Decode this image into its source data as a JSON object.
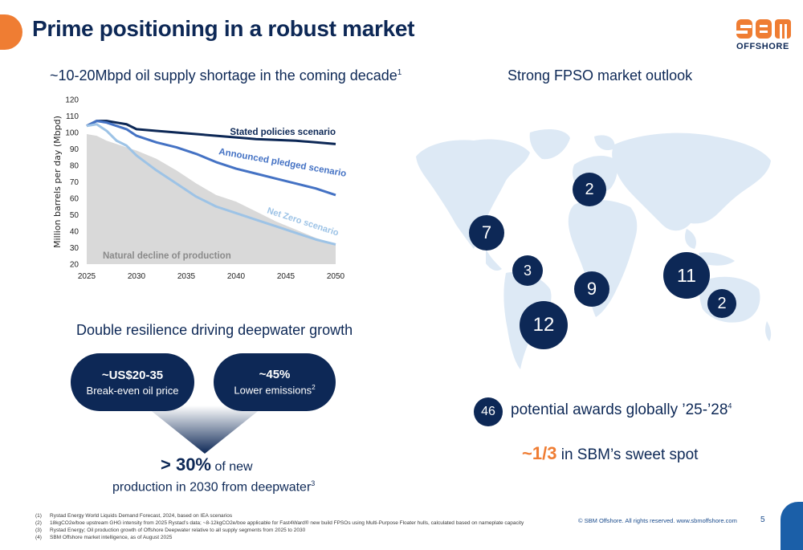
{
  "header": {
    "title": "Prime positioning in a robust market",
    "logo_text": "OFFSHORE"
  },
  "left": {
    "subtitle": "~10-20Mbpd oil supply shortage in the coming decade",
    "subtitle_sup": "1"
  },
  "chart_data": {
    "type": "area",
    "ylabel": "Million barrels per day (Mbpd)",
    "xlabel": "",
    "x": [
      2025,
      2026,
      2027,
      2028,
      2029,
      2030,
      2032,
      2034,
      2036,
      2038,
      2040,
      2042,
      2044,
      2046,
      2048,
      2050
    ],
    "xticks": [
      "2025",
      "2030",
      "2035",
      "2040",
      "2045",
      "2050"
    ],
    "yticks": [
      "20",
      "30",
      "40",
      "50",
      "60",
      "70",
      "80",
      "90",
      "100",
      "110",
      "120"
    ],
    "ylim": [
      20,
      120
    ],
    "xlim": [
      2025,
      2050
    ],
    "series": [
      {
        "name": "Stated policies scenario",
        "kind": "line",
        "color": "#0d2856",
        "values": [
          104,
          107,
          107,
          106,
          105,
          102,
          101,
          100,
          99,
          98,
          97,
          96,
          95.5,
          95,
          94,
          93
        ]
      },
      {
        "name": "Announced pledged scenario",
        "kind": "line",
        "color": "#4472c4",
        "values": [
          104,
          107,
          106,
          104,
          102,
          98,
          94,
          91,
          87,
          82,
          78,
          75,
          72,
          69,
          66,
          62
        ]
      },
      {
        "name": "Net Zero scenario",
        "kind": "line",
        "color": "#9dc3e6",
        "values": [
          104,
          105,
          101,
          95,
          92,
          86,
          77,
          69,
          61,
          55,
          51,
          47,
          43,
          39,
          35,
          32
        ]
      },
      {
        "name": "Natural decline of production",
        "kind": "area",
        "color": "#d9d9d9",
        "values": [
          99,
          98,
          95,
          93,
          91,
          89,
          84,
          77,
          69,
          62,
          58,
          52,
          46,
          41,
          36,
          32
        ]
      }
    ],
    "labels": {
      "stated": "Stated policies scenario",
      "announced": "Announced pledged scenario",
      "netzero": "Net Zero scenario",
      "natural": "Natural decline of production"
    }
  },
  "resilience": {
    "title": "Double resilience driving deepwater growth",
    "pill_left_big": "~US$20-35",
    "pill_left_small": "Break-even oil price",
    "pill_right_big": "~45%",
    "pill_right_small": "Lower emissions",
    "pill_right_sup": "2",
    "result_big": "> 30%",
    "result_rest": "of new",
    "result_line2": "production in 2030 from deepwater",
    "result_sup": "3"
  },
  "right": {
    "subtitle": "Strong FPSO market outlook",
    "bubbles": [
      "2",
      "7",
      "3",
      "9",
      "12",
      "11",
      "2"
    ],
    "total": "46",
    "awards_text": "potential awards globally ’25-’28",
    "awards_sup": "4",
    "sweet_highlight": "~1/3",
    "sweet_text": "in SBM’s sweet spot"
  },
  "footer": {
    "footnotes": [
      {
        "num": "(1)",
        "text": "Rystad Energy World Liquids Demand Forecast, 2024, based on IEA scenarios"
      },
      {
        "num": "(2)",
        "text": "18kgCO2e/boe upstream GHG intensity from 2025 Rystad’s data; ~8-12kgCO2e/boe applicable for Fast4Ward® new build FPSOs using Multi-Purpose Floater hulls, calculated based on nameplate capacity"
      },
      {
        "num": "(3)",
        "text": "Rystad Energy; Oil production growth of Offshore Deepwater relative to all supply segments from 2025 to 2030"
      },
      {
        "num": "(4)",
        "text": "SBM Offshore market intelligence, as of August 2025"
      }
    ],
    "copyright": "© SBM Offshore. All rights reserved. www.sbmoffshore.com",
    "page": "5"
  },
  "colors": {
    "navy": "#0d2856",
    "orange": "#ef7d33",
    "map": "#dde9f5"
  }
}
